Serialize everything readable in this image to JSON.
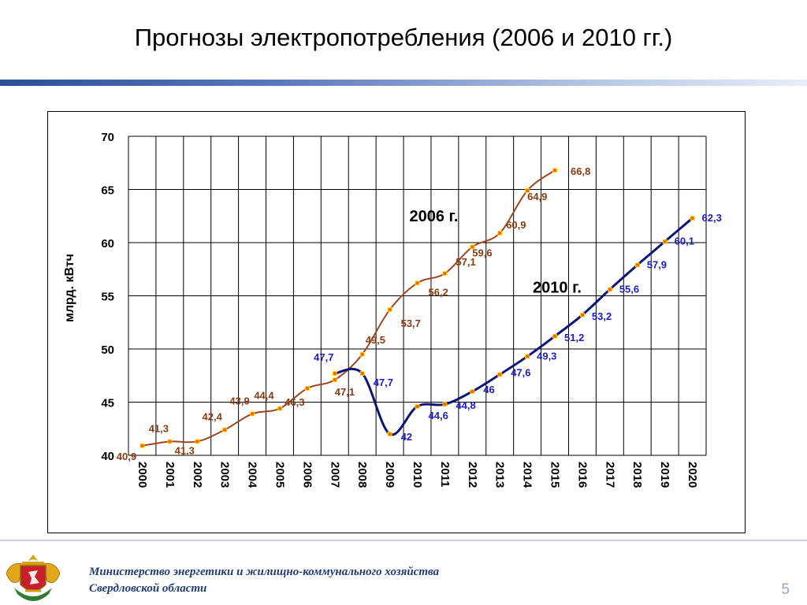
{
  "slide": {
    "title": "Прогнозы электропотребления (2006 и 2010 гг.)",
    "page_number": "5",
    "footer_line1": "Министерство энергетики и жилищно-коммунального хозяйства",
    "footer_line2": "Свердловской области"
  },
  "colors": {
    "series_2006": "#a0451c",
    "series_2010": "#0d1579",
    "label_2006": "#8b3a12",
    "label_2010": "#1c1cc4",
    "marker_fill": "#ff6600",
    "marker_edge": "#ffee00",
    "grid": "#000000",
    "title_rule": "#2c4f9c"
  },
  "chart_data": {
    "type": "line",
    "ylabel": "млрд. кВтч",
    "xlabel": "",
    "ylim": [
      40,
      70
    ],
    "yticks": [
      "40",
      "45",
      "50",
      "55",
      "60",
      "65",
      "70"
    ],
    "x": [
      "2000",
      "2001",
      "2002",
      "2003",
      "2004",
      "2005",
      "2006",
      "2007",
      "2008",
      "2009",
      "2010",
      "2011",
      "2012",
      "2013",
      "2014",
      "2015",
      "2016",
      "2017",
      "2018",
      "2019",
      "2020"
    ],
    "grid": true,
    "legend": "inline labels",
    "series": [
      {
        "name": "2006 г.",
        "x": [
          "2000",
          "2001",
          "2002",
          "2003",
          "2004",
          "2005",
          "2006",
          "2007",
          "2008",
          "2009",
          "2010",
          "2011",
          "2012",
          "2013",
          "2014",
          "2015"
        ],
        "values": [
          40.9,
          41.3,
          41.3,
          42.4,
          43.9,
          44.4,
          46.3,
          47.1,
          49.5,
          53.7,
          56.2,
          57.1,
          59.6,
          60.9,
          64.9,
          66.8
        ],
        "labels": [
          "40,9",
          "41,3",
          "41,3",
          "42,4",
          "43,9",
          "44,4",
          "46,3",
          "47,1",
          "49,5",
          "53,7",
          "56,2",
          "57,1",
          "59,6",
          "60,9",
          "64,9",
          "66,8"
        ],
        "label_color_key": "label_2006"
      },
      {
        "name": "2010 г.",
        "x": [
          "2007",
          "2008",
          "2009",
          "2010",
          "2011",
          "2012",
          "2013",
          "2014",
          "2015",
          "2016",
          "2017",
          "2018",
          "2019",
          "2020"
        ],
        "values": [
          47.7,
          47.7,
          42,
          44.6,
          44.8,
          46,
          47.6,
          49.3,
          51.2,
          53.2,
          55.6,
          57.9,
          60.1,
          62.3
        ],
        "labels": [
          "47,7",
          "47,7",
          "42",
          "44,6",
          "44,8",
          "46",
          "47,6",
          "49,3",
          "51,2",
          "53,2",
          "55,6",
          "57,9",
          "60,1",
          "62,3"
        ],
        "label_color_key": "label_2010"
      }
    ]
  }
}
